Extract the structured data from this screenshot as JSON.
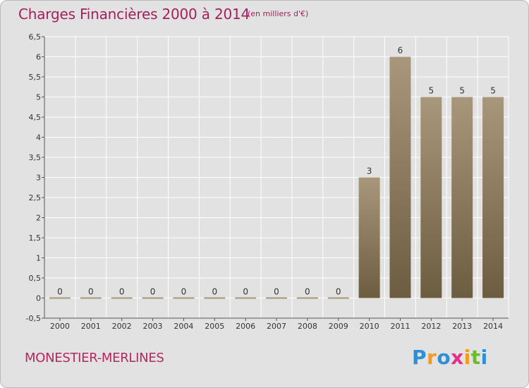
{
  "header": {
    "title": "Charges Financières 2000 à 2014",
    "subtitle": "(en milliers d'€)"
  },
  "footer": {
    "commune": "MONESTIER-MERLINES",
    "logo_text": "Proxiti"
  },
  "colors": {
    "bar_top": "#a8977a",
    "bar_bottom": "#6d5d40",
    "title": "#a3205d",
    "background": "#e2e2e2",
    "gridline": "#ffffff"
  },
  "chart_data": {
    "type": "bar",
    "title": "Charges Financières 2000 à 2014",
    "subtitle": "(en milliers d'€)",
    "categories": [
      "2000",
      "2001",
      "2002",
      "2003",
      "2004",
      "2005",
      "2006",
      "2007",
      "2008",
      "2009",
      "2010",
      "2011",
      "2012",
      "2013",
      "2014"
    ],
    "values": [
      0,
      0,
      0,
      0,
      0,
      0,
      0,
      0,
      0,
      0,
      3,
      6,
      5,
      5,
      5
    ],
    "data_labels": [
      "0",
      "0",
      "0",
      "0",
      "0",
      "0",
      "0",
      "0",
      "0",
      "0",
      "3",
      "6",
      "5",
      "5",
      "5"
    ],
    "ylim": [
      -0.5,
      6.5
    ],
    "yticks": [
      -0.5,
      0,
      0.5,
      1,
      1.5,
      2,
      2.5,
      3,
      3.5,
      4,
      4.5,
      5,
      5.5,
      6,
      6.5
    ],
    "ytick_labels": [
      "-0,5",
      "0",
      "0,5",
      "1",
      "1,5",
      "2",
      "2,5",
      "3",
      "3,5",
      "4",
      "4,5",
      "5",
      "5,5",
      "6",
      "6,5"
    ],
    "grid": true,
    "xlabel": "",
    "ylabel": ""
  }
}
